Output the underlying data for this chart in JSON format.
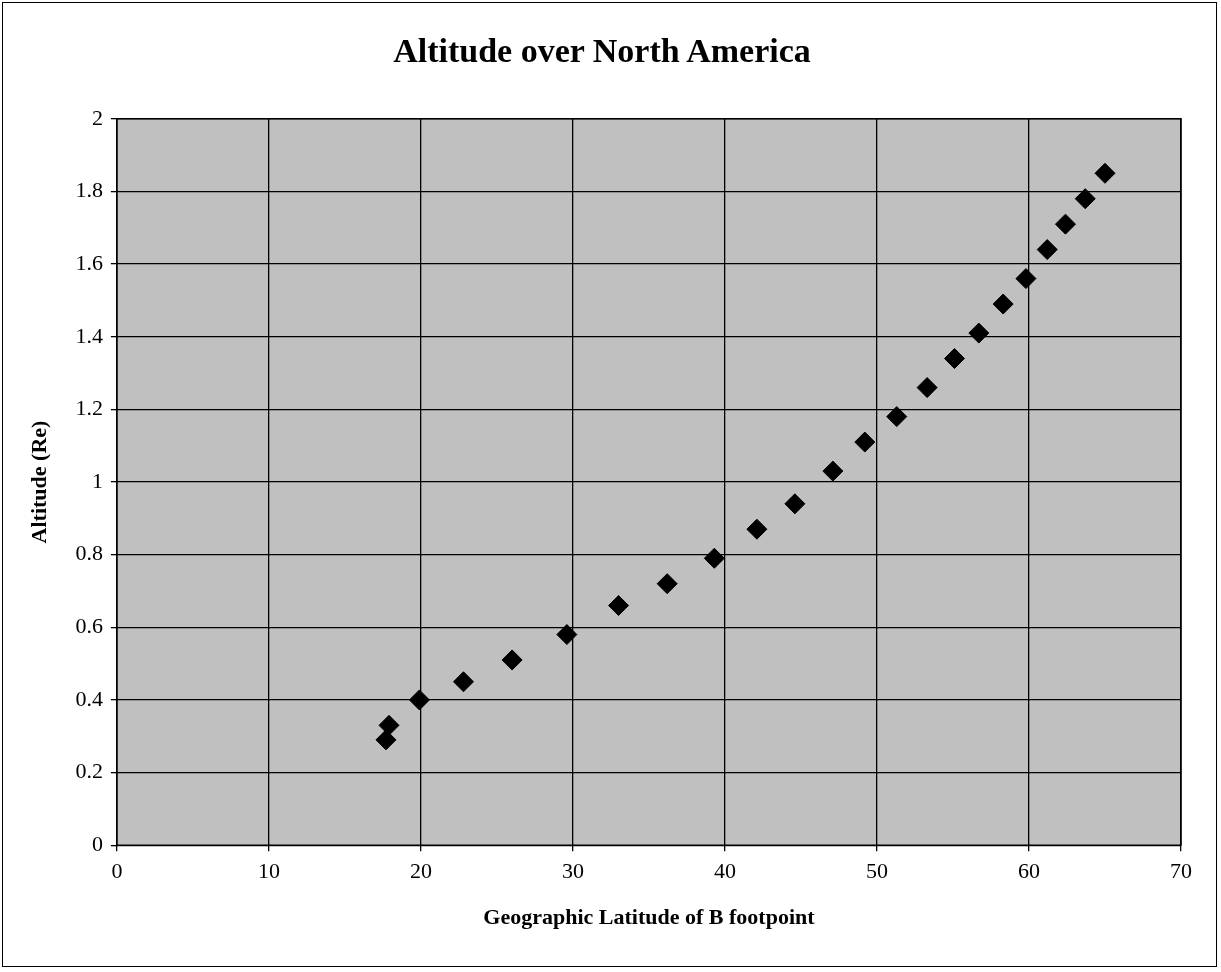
{
  "chart_data": {
    "type": "scatter",
    "title": "Altitude over North America",
    "xlabel": "Geographic Latitude of B footpoint",
    "ylabel": "Altitude (Re)",
    "series": [
      {
        "color": "#000000",
        "x": [
          17.7,
          17.9,
          19.9,
          22.8,
          26.0,
          29.6,
          33.0,
          36.2,
          39.3,
          42.1,
          44.6,
          47.1,
          49.2,
          51.3,
          53.3,
          55.1,
          56.7,
          58.3,
          59.8,
          61.2,
          62.4,
          63.7,
          65.0
        ],
        "values": [
          0.29,
          0.33,
          0.4,
          0.45,
          0.51,
          0.58,
          0.66,
          0.72,
          0.79,
          0.87,
          0.94,
          1.03,
          1.11,
          1.18,
          1.26,
          1.34,
          1.41,
          1.49,
          1.56,
          1.64,
          1.71,
          1.78,
          1.85
        ]
      }
    ],
    "xlim": [
      0,
      70
    ],
    "xticks": [
      0,
      10,
      20,
      30,
      40,
      50,
      60,
      70
    ],
    "ylim": [
      0,
      2
    ],
    "yticks": [
      0,
      0.2,
      0.4,
      0.6,
      0.8,
      1,
      1.2,
      1.4,
      1.6,
      1.8,
      2
    ],
    "grid": true,
    "legend": false,
    "marker": "diamond"
  }
}
